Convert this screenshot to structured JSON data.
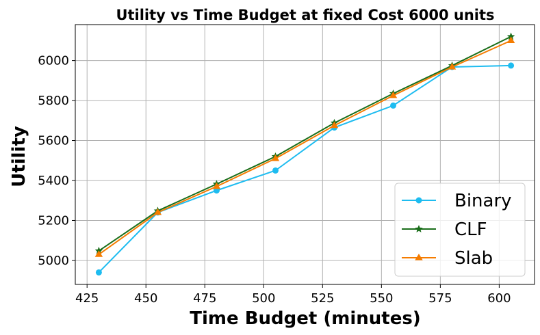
{
  "chart_data": {
    "type": "line",
    "title": "Utility vs Time Budget at fixed Cost 6000 units",
    "xlabel": "Time Budget (minutes)",
    "ylabel": "Utility",
    "x": [
      430,
      455,
      480,
      505,
      530,
      555,
      580,
      605
    ],
    "xlim": [
      420,
      615
    ],
    "ylim": [
      4880,
      6180
    ],
    "xticks": [
      425,
      450,
      475,
      500,
      525,
      550,
      575,
      600
    ],
    "yticks": [
      5000,
      5200,
      5400,
      5600,
      5800,
      6000
    ],
    "grid": true,
    "legend_position": "lower-right",
    "series": [
      {
        "name": "Binary",
        "color": "#1ebcf0",
        "marker": "circle",
        "values": [
          4940,
          5240,
          5350,
          5450,
          5665,
          5775,
          5968,
          5975
        ]
      },
      {
        "name": "CLF",
        "color": "#1a6e1a",
        "marker": "star",
        "values": [
          5048,
          5248,
          5382,
          5520,
          5688,
          5835,
          5975,
          6120
        ]
      },
      {
        "name": "Slab",
        "color": "#f57c00",
        "marker": "triangle",
        "values": [
          5030,
          5240,
          5370,
          5510,
          5675,
          5825,
          5968,
          6100
        ]
      }
    ]
  }
}
